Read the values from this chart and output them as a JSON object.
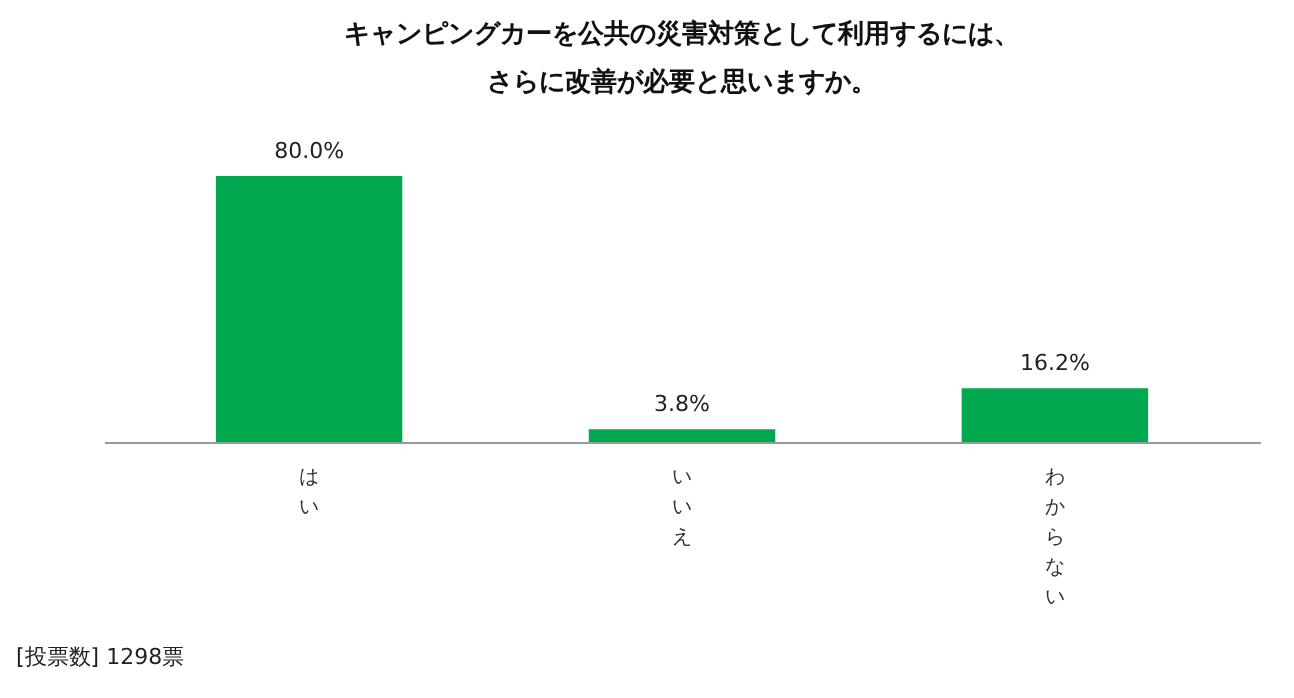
{
  "chart_data": {
    "type": "bar",
    "title": "キャンピングカーを公共の災害対策として利用するには、さらに改善が必要と思いますか。",
    "categories": [
      "はい",
      "いいえ",
      "わからない"
    ],
    "values": [
      80.0,
      3.8,
      16.2
    ],
    "value_labels": [
      "80.0%",
      "3.8%",
      "16.2%"
    ],
    "color": "#00a84f",
    "grid": false,
    "annotations": [
      "[投票数] 1298票"
    ]
  }
}
